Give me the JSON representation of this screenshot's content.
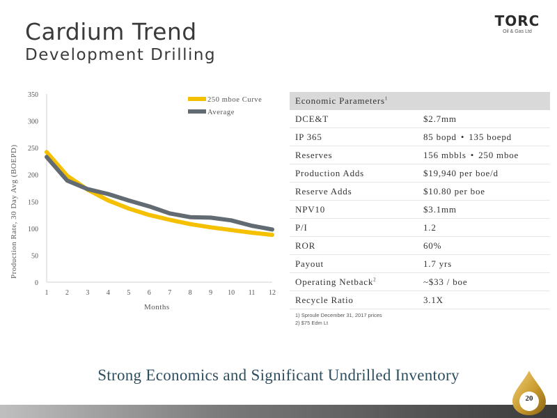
{
  "header": {
    "title": "Cardium Trend",
    "subtitle": "Development Drilling"
  },
  "logo": {
    "word": "TORC",
    "sub": "Oil & Gas Ltd"
  },
  "chart_data": {
    "type": "line",
    "xlabel": "Months",
    "ylabel": "Production Rate, 30 Day Avg (BOEPD)",
    "x": [
      1,
      2,
      3,
      4,
      5,
      6,
      7,
      8,
      9,
      10,
      11,
      12
    ],
    "ylim": [
      0,
      350
    ],
    "yticks": [
      0,
      50,
      100,
      150,
      200,
      250,
      300,
      350
    ],
    "grid": false,
    "legend_position": "top-right",
    "series": [
      {
        "name": "250 mboe Curve",
        "color": "#f5c000",
        "values": [
          242,
          198,
          172,
          152,
          137,
          125,
          116,
          108,
          102,
          97,
          92,
          88
        ]
      },
      {
        "name": "Average",
        "color": "#636b72",
        "values": [
          233,
          189,
          173,
          164,
          152,
          141,
          128,
          121,
          120,
          115,
          105,
          98
        ]
      }
    ]
  },
  "table": {
    "header": "Economic Parameters",
    "header_sup": "1",
    "rows": [
      {
        "param": "DCE&T",
        "value": "$2.7mm"
      },
      {
        "param": "IP 365",
        "value_a": "85 bopd",
        "value_b": "135 boepd"
      },
      {
        "param": "Reserves",
        "value_a": "156 mbbls",
        "value_b": "250 mboe"
      },
      {
        "param": "Production Adds",
        "value": "$19,940 per boe/d"
      },
      {
        "param": "Reserve Adds",
        "value": "$10.80 per boe"
      },
      {
        "param": "NPV10",
        "value": "$3.1mm"
      },
      {
        "param": "P/I",
        "value": "1.2"
      },
      {
        "param": "ROR",
        "value": "60%"
      },
      {
        "param": "Payout",
        "value": "1.7 yrs"
      },
      {
        "param": "Operating Netback",
        "param_sup": "2",
        "value": "~$33 / boe"
      },
      {
        "param": "Recycle Ratio",
        "value": "3.1X"
      }
    ],
    "bullet": "•"
  },
  "footnotes": [
    "1)   Sproule December 31, 2017 prices",
    "2)   $75 Edm Lt"
  ],
  "tagline": "Strong Economics and Significant Undrilled Inventory",
  "page_number": "20",
  "colors": {
    "curve": "#f5c000",
    "average": "#636b72",
    "tagline": "#2e4e5e",
    "table_header": "#d9d9d9",
    "logo_gold": "#c99a2e"
  }
}
